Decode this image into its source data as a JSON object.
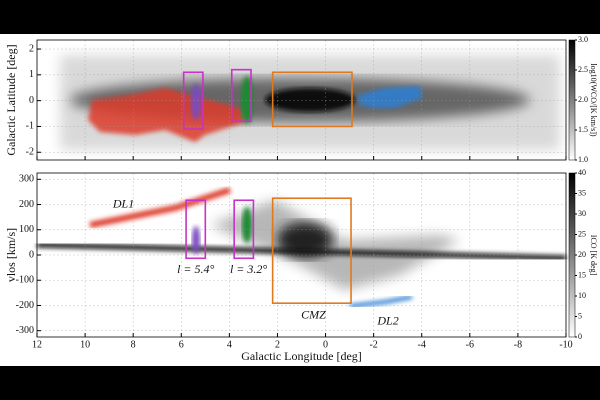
{
  "chart_data": [
    {
      "type": "heatmap",
      "ylabel": "Galactic Latitude [deg]",
      "xlim": [
        12,
        -10
      ],
      "ylim": [
        -2.3,
        2.35
      ],
      "xticks": [
        12,
        10,
        8,
        6,
        4,
        2,
        0,
        -2,
        -4,
        -6,
        -8,
        -10
      ],
      "yticks": [
        -2,
        -1,
        0,
        1,
        2
      ],
      "grid": true,
      "colorbar": {
        "label": "log10(WCO/[K km/s])",
        "lim": [
          1,
          3
        ],
        "ticks": [
          {
            "value": 1,
            "label": "1.0"
          },
          1.5,
          {
            "value": 2,
            "label": "2.0"
          },
          2.5,
          {
            "value": 3,
            "label": "3.0"
          }
        ]
      },
      "regions": [
        {
          "x": [
            5.9,
            5.1
          ],
          "y": [
            -1.1,
            1.1
          ],
          "color": "#c832c8"
        },
        {
          "x": [
            3.9,
            3.1
          ],
          "y": [
            -0.8,
            1.2
          ],
          "color": "#c832c8"
        },
        {
          "x": [
            2.2,
            -1.1
          ],
          "y": [
            -1.0,
            1.1
          ],
          "color": "#e07a1f"
        }
      ]
    },
    {
      "type": "heatmap",
      "xlabel": "Galactic Longitude [deg]",
      "ylabel": "vlos [km/s]",
      "xlim": [
        12,
        -10
      ],
      "ylim": [
        -325,
        325
      ],
      "xticks": [
        12,
        10,
        8,
        6,
        4,
        2,
        0,
        -2,
        -4,
        -6,
        -8,
        -10
      ],
      "yticks": [
        -300,
        -200,
        -100,
        0,
        100,
        200,
        300
      ],
      "grid": true,
      "colorbar": {
        "label": "ICO [K deg]",
        "lim": [
          0,
          40
        ],
        "ticks": [
          0,
          5,
          10,
          15,
          20,
          25,
          30,
          35,
          40
        ]
      },
      "regions": [
        {
          "x": [
            5.8,
            5.0
          ],
          "y": [
            -13,
            217
          ],
          "color": "#c832c8"
        },
        {
          "x": [
            3.8,
            3.0
          ],
          "y": [
            -13,
            217
          ],
          "color": "#c832c8"
        },
        {
          "x": [
            2.2,
            -1.06
          ],
          "y": [
            -191,
            225
          ],
          "color": "#e07a1f"
        }
      ],
      "annotations": [
        {
          "text": "DL1",
          "x": 8.4,
          "y": 200,
          "color": "#c0281e"
        },
        {
          "text": "l = 5.4°",
          "x": 5.4,
          "y": -60,
          "color": "#c832c8"
        },
        {
          "text": "l = 3.2°",
          "x": 3.2,
          "y": -60,
          "color": "#c832c8"
        },
        {
          "text": "CMZ",
          "x": 0.5,
          "y": -240,
          "color": "#e07a1f"
        },
        {
          "text": "DL2",
          "x": -2.6,
          "y": -265,
          "color": "#1e3c78"
        }
      ]
    }
  ]
}
